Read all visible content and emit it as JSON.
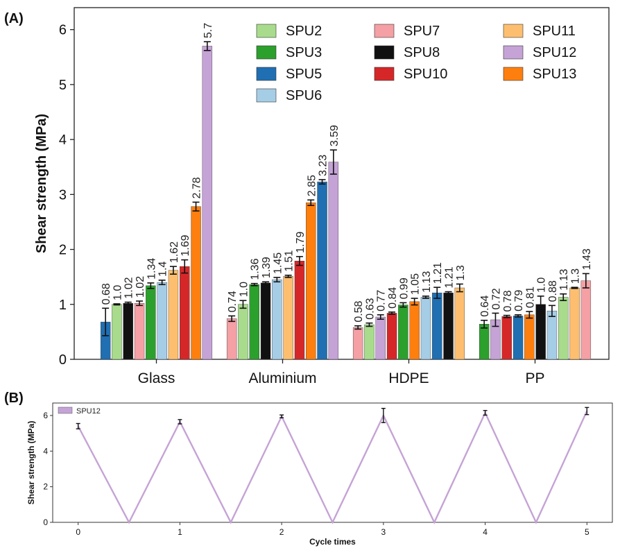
{
  "panels": {
    "a": "(A)",
    "b": "(B)"
  },
  "colors": {
    "SPU2": "#a8dc8c",
    "SPU3": "#2ca02c",
    "SPU5": "#1f6fb2",
    "SPU6": "#a6cde6",
    "SPU7": "#f4a0a4",
    "SPU8": "#111111",
    "SPU10": "#d62728",
    "SPU11": "#fdbf6f",
    "SPU12": "#c5a3d6",
    "SPU13": "#ff7f0e"
  },
  "chart_data": [
    {
      "type": "bar",
      "ylabel": "Shear strength (MPa)",
      "ylim": [
        0,
        6.4
      ],
      "yticks": [
        "0",
        "1",
        "2",
        "3",
        "4",
        "5",
        "6"
      ],
      "categories": [
        "Glass",
        "Aluminium",
        "HDPE",
        "PP"
      ],
      "legend": {
        "placement": "top-right",
        "entries": [
          "SPU2",
          "SPU3",
          "SPU5",
          "SPU6",
          "SPU7",
          "SPU8",
          "SPU10",
          "SPU11",
          "SPU12",
          "SPU13"
        ]
      },
      "groups": [
        {
          "category": "Glass",
          "bars": [
            {
              "series": "SPU5",
              "value": 0.68,
              "label": "0.68",
              "err": 0.25
            },
            {
              "series": "SPU2",
              "value": 1.0,
              "label": "1.0",
              "err": 0.01
            },
            {
              "series": "SPU8",
              "value": 1.02,
              "label": "1.02",
              "err": 0.02
            },
            {
              "series": "SPU7",
              "value": 1.02,
              "label": "1.02",
              "err": 0.04
            },
            {
              "series": "SPU3",
              "value": 1.34,
              "label": "1.34",
              "err": 0.05
            },
            {
              "series": "SPU6",
              "value": 1.4,
              "label": "1.4",
              "err": 0.04
            },
            {
              "series": "SPU11",
              "value": 1.62,
              "label": "1.62",
              "err": 0.07
            },
            {
              "series": "SPU10",
              "value": 1.69,
              "label": "1.69",
              "err": 0.12
            },
            {
              "series": "SPU13",
              "value": 2.78,
              "label": "2.78",
              "err": 0.08
            },
            {
              "series": "SPU12",
              "value": 5.7,
              "label": "5.7",
              "err": 0.08
            }
          ]
        },
        {
          "category": "Aluminium",
          "bars": [
            {
              "series": "SPU7",
              "value": 0.74,
              "label": "0.74",
              "err": 0.05
            },
            {
              "series": "SPU2",
              "value": 1.0,
              "label": "1.0",
              "err": 0.07
            },
            {
              "series": "SPU3",
              "value": 1.36,
              "label": "1.36",
              "err": 0.02
            },
            {
              "series": "SPU8",
              "value": 1.39,
              "label": "1.39",
              "err": 0.02
            },
            {
              "series": "SPU6",
              "value": 1.45,
              "label": "1.45",
              "err": 0.04
            },
            {
              "series": "SPU11",
              "value": 1.51,
              "label": "1.51",
              "err": 0.02
            },
            {
              "series": "SPU10",
              "value": 1.79,
              "label": "1.79",
              "err": 0.08
            },
            {
              "series": "SPU13",
              "value": 2.85,
              "label": "2.85",
              "err": 0.05
            },
            {
              "series": "SPU5",
              "value": 3.23,
              "label": "3.23",
              "err": 0.04
            },
            {
              "series": "SPU12",
              "value": 3.59,
              "label": "3.59",
              "err": 0.22
            }
          ]
        },
        {
          "category": "HDPE",
          "bars": [
            {
              "series": "SPU7",
              "value": 0.58,
              "label": "0.58",
              "err": 0.03
            },
            {
              "series": "SPU2",
              "value": 0.63,
              "label": "0.63",
              "err": 0.03
            },
            {
              "series": "SPU12",
              "value": 0.77,
              "label": "0.77",
              "err": 0.04
            },
            {
              "series": "SPU10",
              "value": 0.84,
              "label": "0.84",
              "err": 0.02
            },
            {
              "series": "SPU3",
              "value": 0.99,
              "label": "0.99",
              "err": 0.04
            },
            {
              "series": "SPU13",
              "value": 1.05,
              "label": "1.05",
              "err": 0.06
            },
            {
              "series": "SPU6",
              "value": 1.13,
              "label": "1.13",
              "err": 0.02
            },
            {
              "series": "SPU5",
              "value": 1.21,
              "label": "1.21",
              "err": 0.1
            },
            {
              "series": "SPU8",
              "value": 1.21,
              "label": "1.21",
              "err": 0.02
            },
            {
              "series": "SPU11",
              "value": 1.3,
              "label": "1.3",
              "err": 0.07
            }
          ]
        },
        {
          "category": "PP",
          "bars": [
            {
              "series": "SPU3",
              "value": 0.64,
              "label": "0.64",
              "err": 0.07
            },
            {
              "series": "SPU12",
              "value": 0.72,
              "label": "0.72",
              "err": 0.12
            },
            {
              "series": "SPU10",
              "value": 0.78,
              "label": "0.78",
              "err": 0.02
            },
            {
              "series": "SPU5",
              "value": 0.79,
              "label": "0.79",
              "err": 0.02
            },
            {
              "series": "SPU13",
              "value": 0.81,
              "label": "0.81",
              "err": 0.06
            },
            {
              "series": "SPU8",
              "value": 1.0,
              "label": "1.0",
              "err": 0.15
            },
            {
              "series": "SPU6",
              "value": 0.88,
              "label": "0.88",
              "err": 0.1
            },
            {
              "series": "SPU2",
              "value": 1.13,
              "label": "1.13",
              "err": 0.06
            },
            {
              "series": "SPU11",
              "value": 1.3,
              "label": "1.3",
              "err": 0.01
            },
            {
              "series": "SPU7",
              "value": 1.43,
              "label": "1.43",
              "err": 0.13
            }
          ]
        }
      ]
    },
    {
      "type": "line",
      "xlabel": "Cycle times",
      "ylabel": "Shear strength (MPa)",
      "xlim": [
        -0.25,
        5.25
      ],
      "ylim": [
        0,
        6.7
      ],
      "xticks": [
        "0",
        "1",
        "2",
        "3",
        "4",
        "5"
      ],
      "yticks": [
        "0",
        "2",
        "4",
        "6"
      ],
      "legend": {
        "placement": "top-left",
        "entries": [
          "SPU12"
        ]
      },
      "series": [
        {
          "name": "SPU12",
          "x": [
            0,
            0.5,
            1,
            1.5,
            2,
            2.5,
            3,
            3.5,
            4,
            4.5,
            5
          ],
          "y": [
            5.4,
            0,
            5.65,
            0,
            5.95,
            0,
            6.0,
            0,
            6.15,
            0,
            6.25
          ],
          "err": [
            0.15,
            null,
            0.12,
            null,
            0.08,
            null,
            0.4,
            null,
            0.13,
            null,
            0.2
          ]
        }
      ]
    }
  ]
}
